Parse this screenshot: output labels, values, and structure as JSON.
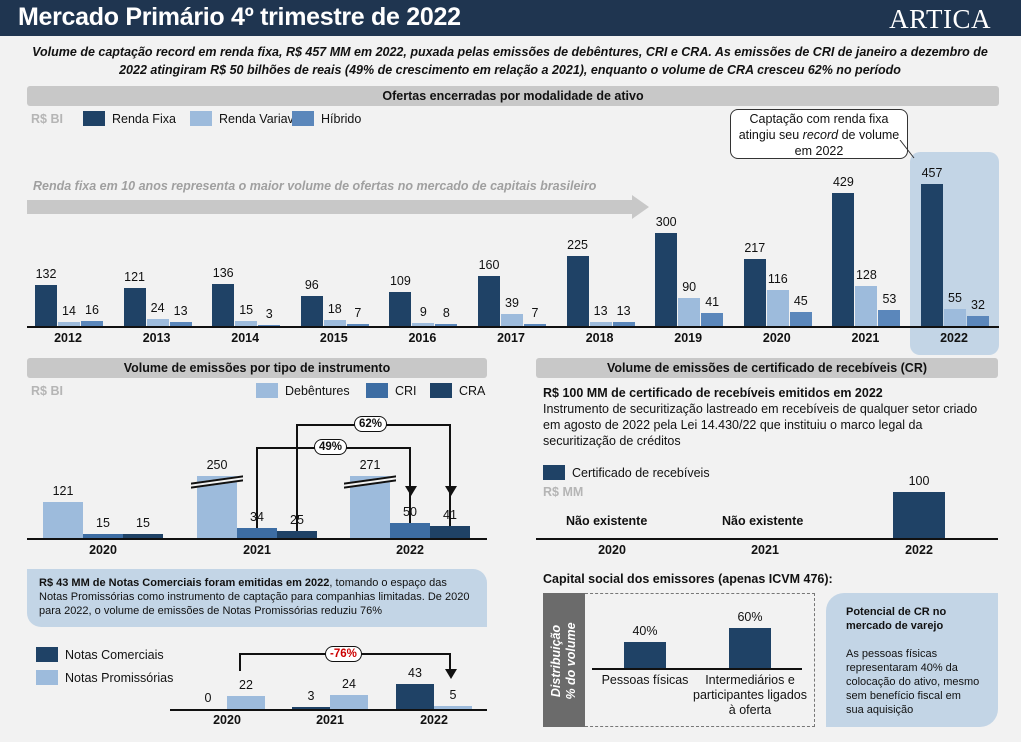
{
  "header": {
    "title": "Mercado Primário 4º trimestre de 2022",
    "logo": "ARTICA"
  },
  "subtitle": "Volume de captação record em renda fixa, R$ 457 MM em 2022, puxada pelas emissões de debêntures, CRI e CRA. As emissões de CRI de janeiro a dezembro de 2022 atingiram R$ 50 bilhões de reais (49% de crescimento em relação a 2021), enquanto o volume de CRA cresceu 62% no período",
  "colors": {
    "dark": "#1f4266",
    "light": "#9dbbdc",
    "mid": "#5b87bb",
    "header": "#1f3550",
    "highlight": "#c3d5e6"
  },
  "section1": {
    "title": "Ofertas encerradas por modalidade de ativo",
    "callout": {
      "pre": "Captação com renda fixa atingiu seu ",
      "em": "record",
      "post": " de volume em 2022"
    },
    "arrow_text": "Renda fixa em 10 anos representa o maior volume de ofertas no mercado de capitais brasileiro"
  },
  "section2": {
    "title": "Volume de emissões por tipo de instrumento",
    "growth_cri": "49%",
    "growth_cra": "62%"
  },
  "section3": {
    "title": "Volume de emissões de certificado de recebíveis (CR)",
    "headline": "R$ 100 MM de certificado de recebíveis emitidos em 2022",
    "text": "Instrumento de securitização lastreado em recebíveis de qualquer setor criado em agosto de 2022 pela Lei 14.430/22 que instituiu o marco legal da securitização de créditos",
    "na1": "Não existente",
    "na2": "Não existente"
  },
  "notes": {
    "bold": "R$ 43 MM de Notas Comerciais foram emitidas em 2022",
    "rest": ", tomando o espaço das Notas Promissórias como instrumento de captação para companhias limitadas. De 2020 para 2022, o volume de emissões de Notas Promissórias reduziu 76%",
    "change": "-76%"
  },
  "capital": {
    "title": "Capital social dos emissores (apenas ICVM 476):",
    "side_label_1": "Distribuição",
    "side_label_2": "% do volume",
    "box_title": "Potencial de CR no mercado de varejo",
    "box_text": "As pessoas físicas representaram 40% da colocação do ativo, mesmo sem benefício fiscal em sua aquisição"
  },
  "chart_data": [
    {
      "type": "bar",
      "unit": "R$ BI",
      "categories": [
        "2012",
        "2013",
        "2014",
        "2015",
        "2016",
        "2017",
        "2018",
        "2019",
        "2020",
        "2021",
        "2022"
      ],
      "series": [
        {
          "name": "Renda Fixa",
          "values": [
            132,
            121,
            136,
            96,
            109,
            160,
            225,
            300,
            217,
            429,
            457
          ]
        },
        {
          "name": "Renda Variavel",
          "values": [
            14,
            24,
            15,
            18,
            9,
            39,
            13,
            90,
            116,
            128,
            55
          ]
        },
        {
          "name": "Híbrido",
          "values": [
            16,
            13,
            3,
            7,
            8,
            7,
            13,
            41,
            45,
            53,
            32
          ]
        }
      ]
    },
    {
      "type": "bar",
      "unit": "R$ BI",
      "categories": [
        "2020",
        "2021",
        "2022"
      ],
      "series": [
        {
          "name": "Debêntures",
          "values": [
            121,
            250,
            271
          ]
        },
        {
          "name": "CRI",
          "values": [
            15,
            34,
            50
          ]
        },
        {
          "name": "CRA",
          "values": [
            15,
            25,
            41
          ]
        }
      ],
      "broken_axis": true
    },
    {
      "type": "bar",
      "unit": "R$ MM",
      "categories": [
        "2020",
        "2021",
        "2022"
      ],
      "series": [
        {
          "name": "Certificado de recebíveis",
          "values": [
            null,
            null,
            100
          ]
        }
      ]
    },
    {
      "type": "bar",
      "categories": [
        "2020",
        "2021",
        "2022"
      ],
      "series": [
        {
          "name": "Notas Comerciais",
          "values": [
            0,
            3,
            43
          ]
        },
        {
          "name": "Notas Promissórias",
          "values": [
            22,
            24,
            5
          ]
        }
      ]
    },
    {
      "type": "bar",
      "categories": [
        "Pessoas físicas",
        "Intermediários e participantes ligados à oferta"
      ],
      "values": [
        40,
        60
      ],
      "labels": [
        "40%",
        "60%"
      ]
    }
  ]
}
